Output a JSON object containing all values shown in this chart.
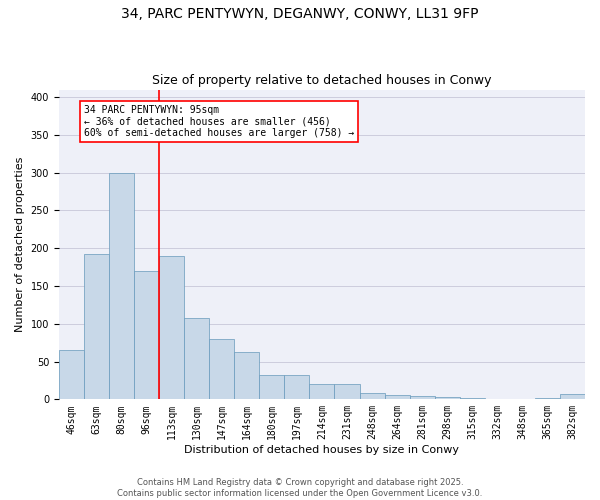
{
  "title_line1": "34, PARC PENTYWYN, DEGANWY, CONWY, LL31 9FP",
  "title_line2": "Size of property relative to detached houses in Conwy",
  "xlabel": "Distribution of detached houses by size in Conwy",
  "ylabel": "Number of detached properties",
  "categories": [
    "46sqm",
    "63sqm",
    "80sqm",
    "96sqm",
    "113sqm",
    "130sqm",
    "147sqm",
    "164sqm",
    "180sqm",
    "197sqm",
    "214sqm",
    "231sqm",
    "248sqm",
    "264sqm",
    "281sqm",
    "298sqm",
    "315sqm",
    "332sqm",
    "348sqm",
    "365sqm",
    "382sqm"
  ],
  "values": [
    65,
    193,
    300,
    170,
    190,
    108,
    80,
    63,
    32,
    32,
    20,
    20,
    9,
    6,
    4,
    3,
    2,
    1,
    0,
    2,
    7
  ],
  "bar_color": "#c8d8e8",
  "bar_edge_color": "#6699bb",
  "grid_color": "#ccccdd",
  "background_color": "#eef0f8",
  "vline_x": 3.5,
  "vline_color": "red",
  "annotation_text": "34 PARC PENTYWYN: 95sqm\n← 36% of detached houses are smaller (456)\n60% of semi-detached houses are larger (758) →",
  "annotation_box_color": "red",
  "footer_line1": "Contains HM Land Registry data © Crown copyright and database right 2025.",
  "footer_line2": "Contains public sector information licensed under the Open Government Licence v3.0.",
  "ylim": [
    0,
    410
  ],
  "title_fontsize": 10,
  "subtitle_fontsize": 9,
  "tick_fontsize": 7,
  "ylabel_fontsize": 8,
  "xlabel_fontsize": 8,
  "footer_fontsize": 6,
  "annotation_fontsize": 7
}
